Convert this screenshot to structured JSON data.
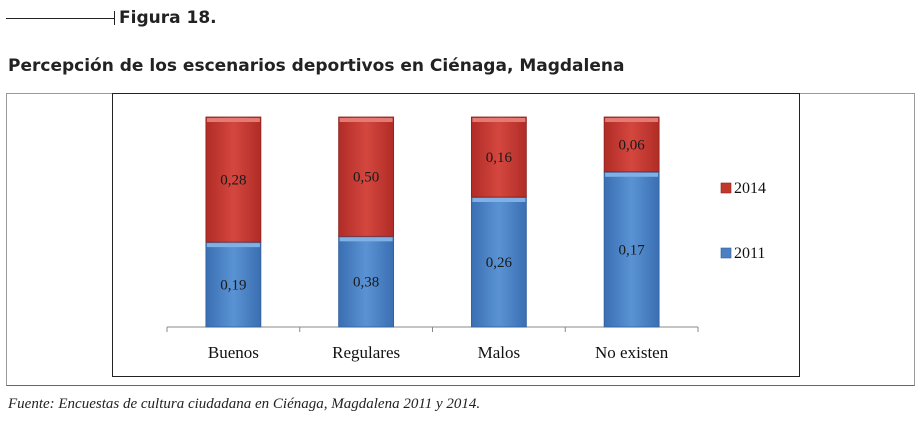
{
  "figure": {
    "label": "Figura 18."
  },
  "source": "Fuente: Encuestas de cultura ciudadana en Ciénaga, Magdalena 2011 y 2014.",
  "colors": {
    "series_2011": "#4a7fc1",
    "series_2014": "#c0392b"
  },
  "chart_data": {
    "type": "bar",
    "stacked": true,
    "percent_stacked": true,
    "title": "Percepción de los escenarios deportivos en Ciénaga, Magdalena",
    "xlabel": "",
    "ylabel": "",
    "categories": [
      "Buenos",
      "Regulares",
      "Malos",
      "No existen"
    ],
    "series": [
      {
        "name": "2011",
        "values": [
          0.19,
          0.38,
          0.26,
          0.17
        ],
        "labels": [
          "0,19",
          "0,38",
          "0,26",
          "0,17"
        ]
      },
      {
        "name": "2014",
        "values": [
          0.28,
          0.5,
          0.16,
          0.06
        ],
        "labels": [
          "0,28",
          "0,50",
          "0,16",
          "0,06"
        ]
      }
    ],
    "legend": {
      "position": "right",
      "order": [
        "2014",
        "2011"
      ]
    },
    "grid": false
  }
}
